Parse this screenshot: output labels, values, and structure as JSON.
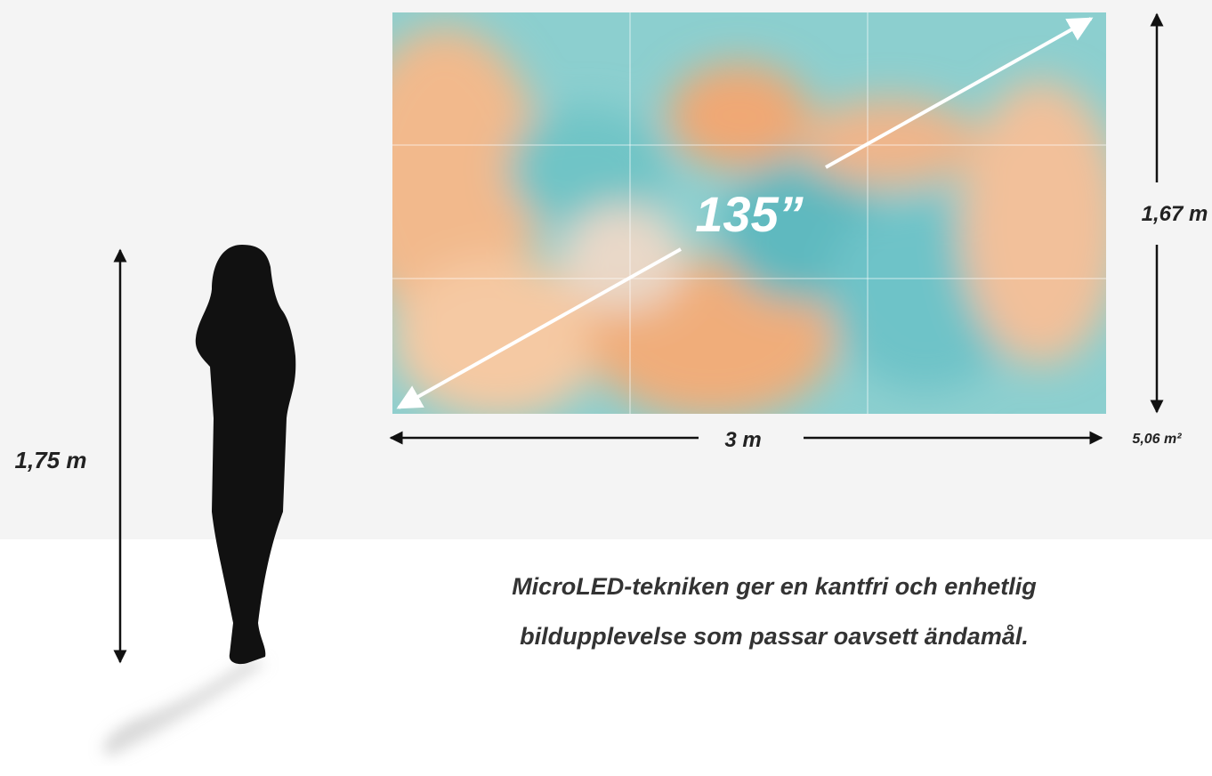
{
  "screen": {
    "diagonal": "135”",
    "height": "1,67 m",
    "width": "3 m",
    "area": "5,06 m²"
  },
  "person": {
    "height": "1,75 m"
  },
  "caption": [
    "MicroLED-tekniken ger en kantfri och enhetlig",
    "bildupplevelse som passar oavsett ändamål."
  ]
}
